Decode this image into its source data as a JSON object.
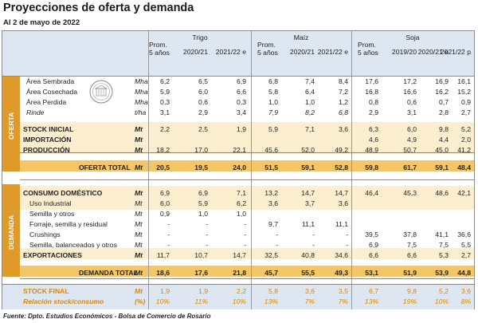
{
  "title": "Proyecciones de oferta y demanda",
  "date": "Al 2 de mayo de 2022",
  "source": "Fuente: Dpto. Estudios Económicos - Bolsa de Comercio de Rosario",
  "crops": [
    "Trigo",
    "Maíz",
    "Soja"
  ],
  "columns": {
    "trigo": [
      "Prom. 5 años",
      "2020/21",
      "2021/22 e"
    ],
    "maiz": [
      "Prom. 5 años",
      "2020/21",
      "2021/22 e"
    ],
    "soja": [
      "Prom. 5 años",
      "2019/20",
      "2020/21 e",
      "2021/22 p"
    ]
  },
  "section_labels": {
    "oferta": "OFERTA",
    "demanda": "DEMANDA"
  },
  "rows": [
    {
      "label": "Área Sembrada",
      "unit": "Mha",
      "style": "plain",
      "vals": [
        "6,2",
        "6,5",
        "6,9",
        "6,8",
        "7,4",
        "8,4",
        "17,6",
        "17,2",
        "16,9",
        "16,1"
      ]
    },
    {
      "label": "Área Cosechada",
      "unit": "Mha",
      "style": "plain",
      "vals": [
        "5,9",
        "6,0",
        "6,6",
        "5,8",
        "6,4",
        "7,2",
        "16,8",
        "16,6",
        "16,2",
        "15,2"
      ]
    },
    {
      "label": "Área Perdida",
      "unit": "Mha",
      "style": "plain",
      "vals": [
        "0,3",
        "0,6",
        "0,3",
        "1,0",
        "1,0",
        "1,2",
        "0,8",
        "0,6",
        "0,7",
        "0,9"
      ]
    },
    {
      "label": "Rinde",
      "unit": "t/ha",
      "style": "italic",
      "vals": [
        "3,1",
        "2,9",
        "3,4",
        "7,9",
        "8,2",
        "6,8",
        "2,9",
        "3,1",
        "2,8",
        "2,7"
      ]
    },
    {
      "label": "STOCK INICIAL",
      "unit": "Mt",
      "style": "bold-band",
      "vals": [
        "2,2",
        "2,5",
        "1,9",
        "5,9",
        "7,1",
        "3,6",
        "6,3",
        "6,0",
        "9,8",
        "5,2"
      ]
    },
    {
      "label": "IMPORTACIÓN",
      "unit": "Mt",
      "style": "bold-band",
      "vals": [
        "",
        "",
        "",
        "",
        "",
        "",
        "4,6",
        "4,9",
        "4,4",
        "2,0"
      ]
    },
    {
      "label": "PRODUCCIÓN",
      "unit": "Mt",
      "style": "bold-band",
      "vals": [
        "18,2",
        "17,0",
        "22,1",
        "45,6",
        "52,0",
        "49,2",
        "48,9",
        "50,7",
        "45,0",
        "41,2"
      ]
    },
    {
      "label": "OFERTA TOTAL",
      "unit": "Mt",
      "style": "total",
      "vals": [
        "20,5",
        "19,5",
        "24,0",
        "51,5",
        "59,1",
        "52,8",
        "59,8",
        "61,7",
        "59,1",
        "48,4"
      ]
    },
    {
      "label": "CONSUMO DOMÉSTICO",
      "unit": "Mt",
      "style": "bold-band",
      "vals": [
        "6,9",
        "6,9",
        "7,1",
        "13,2",
        "14,7",
        "14,7",
        "46,4",
        "45,3",
        "48,6",
        "42,1"
      ]
    },
    {
      "label": "Uso Industrial",
      "unit": "Mt",
      "style": "plain",
      "vals": [
        "6,0",
        "5,9",
        "6,2",
        "3,6",
        "3,7",
        "3,6",
        "",
        "",
        "",
        ""
      ]
    },
    {
      "label": "Semilla y otros",
      "unit": "Mt",
      "style": "plain",
      "vals": [
        "0,9",
        "1,0",
        "1,0",
        "",
        "",
        "",
        "",
        "",
        "",
        ""
      ]
    },
    {
      "label": "Forraje, semilla y residual",
      "unit": "Mt",
      "style": "plain",
      "vals": [
        "-",
        "-",
        "-",
        "9,7",
        "11,1",
        "11,1",
        "",
        "",
        "",
        ""
      ]
    },
    {
      "label": "Crushings",
      "unit": "Mt",
      "style": "plain",
      "vals": [
        "-",
        "-",
        "-",
        "-",
        "-",
        "-",
        "39,5",
        "37,8",
        "41,1",
        "36,6"
      ]
    },
    {
      "label": "Semilla, balanceados y otros",
      "unit": "Mt",
      "style": "plain",
      "vals": [
        "-",
        "-",
        "-",
        "-",
        "-",
        "-",
        "6,9",
        "7,5",
        "7,5",
        "5,5"
      ]
    },
    {
      "label": "EXPORTACIONES",
      "unit": "Mt",
      "style": "bold-band",
      "vals": [
        "11,7",
        "10,7",
        "14,7",
        "32,5",
        "40,8",
        "34,6",
        "6,6",
        "6,6",
        "5,3",
        "2,7"
      ]
    },
    {
      "label": "DEMANDA TOTAL",
      "unit": "Mt",
      "style": "total",
      "vals": [
        "18,6",
        "17,6",
        "21,8",
        "45,7",
        "55,5",
        "49,3",
        "53,1",
        "51,9",
        "53,9",
        "44,8"
      ]
    },
    {
      "label": "STOCK FINAL",
      "unit": "Mt",
      "style": "final",
      "vals": [
        "1,9",
        "1,9",
        "2,2",
        "5,8",
        "3,6",
        "3,5",
        "6,7",
        "9,8",
        "5,2",
        "3,6"
      ]
    },
    {
      "label": "Relación stock/consumo",
      "unit": "(%)",
      "style": "ratio",
      "vals": [
        "10%",
        "11%",
        "10%",
        "13%",
        "7%",
        "7%",
        "13%",
        "19%",
        "10%",
        "8%"
      ]
    }
  ],
  "colors": {
    "header_bg": "#dde6f1",
    "band_bg": "#fbefcf",
    "total_bg": "#f4c667",
    "sidebar": "#e09a2a",
    "accent": "#d98a00"
  }
}
